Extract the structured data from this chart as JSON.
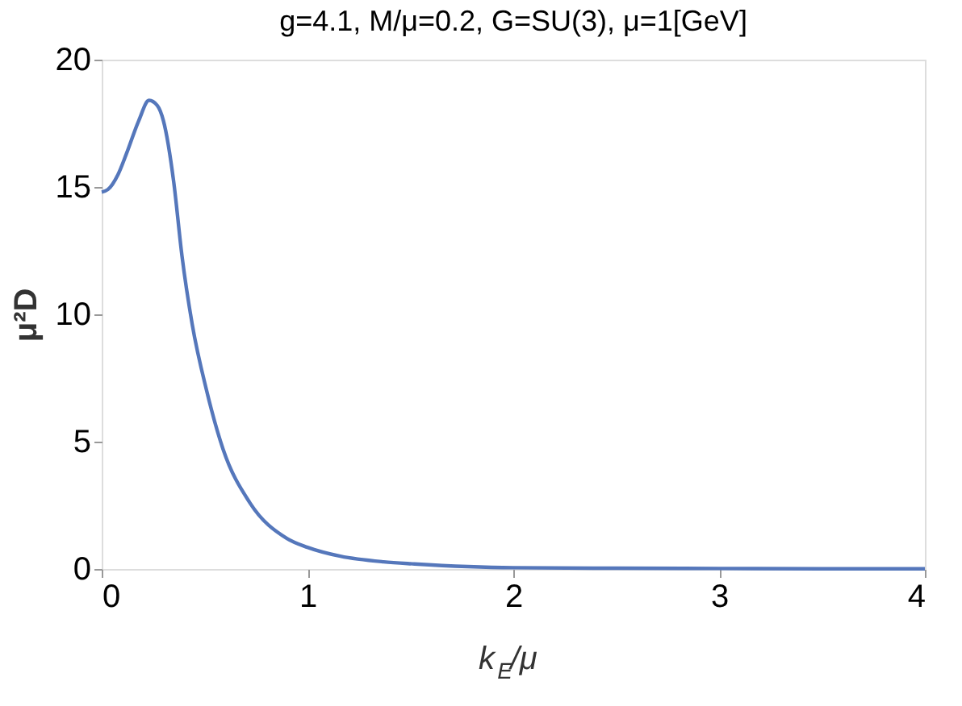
{
  "chart_data": {
    "type": "line",
    "title": "g=4.1, M/μ=0.2, G=SU(3), μ=1[GeV]",
    "xlabel": "k$_{E}$/μ",
    "ylabel": "μ²D",
    "x": [
      0,
      0.03,
      0.08,
      0.12,
      0.18,
      0.23,
      0.27,
      0.3,
      0.35,
      0.39,
      0.44,
      0.51,
      0.59,
      0.72,
      0.9,
      1.0,
      1.16,
      1.37,
      1.52,
      2.0,
      2.5,
      3.0,
      3.5,
      4.0
    ],
    "series": [
      {
        "color": "#5577bb",
        "values": [
          14.8,
          14.9,
          15.5,
          16.3,
          17.6,
          18.4,
          18.2,
          17.6,
          15.2,
          12.3,
          9.6,
          7.0,
          4.7,
          2.6,
          1.2,
          0.85,
          0.5,
          0.28,
          0.2,
          0.05,
          0.03,
          0.02,
          0.01,
          0.01
        ]
      }
    ],
    "xlim": [
      0,
      4
    ],
    "ylim": [
      0,
      20
    ],
    "xticks": [
      0,
      1,
      2,
      3,
      4
    ],
    "yticks": [
      0,
      5,
      10,
      15,
      20
    ],
    "grid": false,
    "legend": false,
    "marker": "none",
    "line_style": "solid"
  }
}
